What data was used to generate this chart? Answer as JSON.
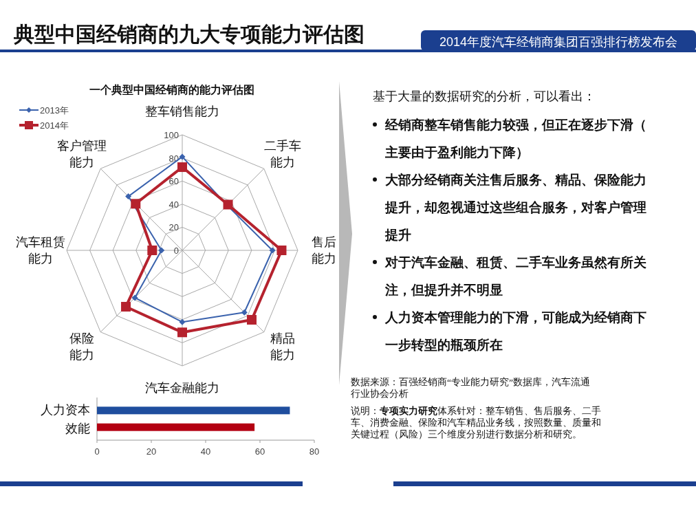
{
  "chart_data": [
    {
      "type": "other",
      "title": "典型中国经销商的九大专项能力评估图",
      "subtitle": "2014年度汽车经销商集团百强排行榜发布会",
      "annotations": [
        "基于大量的数据研究的分析，可以看出：",
        "经销商整车销售能力较强，但正在逐步下滑（主要由于盈利能力下降）",
        "大部分经销商关注售后服务、精品、保险能力提升，却忽视通过这些组合服务，对客户管理提升",
        "对于汽车金融、租赁、二手车业务虽然有所关注，但提升并不明显",
        "人力资本管理能力的下滑，可能成为经销商下一步转型的瓶颈所在",
        "数据来源：百强经销商“专业能力研究”数据库，汽车流通行业协会分析",
        "说明：**专项实力研究**体系针对：整车销售、售后服务、二手车、消费金融、保险和汽车精品业务线，按照数量、质量和关键过程（风险）三个维度分别进行数据分析和研究。"
      ]
    },
    {
      "type": "radar",
      "title": "一个典型中国经销商的能力评估图",
      "categories": [
        "整车销售能力",
        "二手车能力",
        "售后能力",
        "精品能力",
        "汽车金融能力",
        "保险能力",
        "汽车租赁能力",
        "客户管理能力"
      ],
      "ylim": [
        0,
        100
      ],
      "yticks": [
        0,
        20,
        40,
        60,
        80,
        100
      ],
      "grid": true,
      "legend": "top left",
      "series": [
        {
          "name": "2013年",
          "color": "#3a62ad",
          "marker": "diamond",
          "values": [
            81,
            55,
            78,
            76,
            62,
            58,
            18,
            66
          ]
        },
        {
          "name": "2014年",
          "color": "#b5222e",
          "marker": "square",
          "values": [
            72,
            56,
            86,
            85,
            71,
            69,
            26,
            57
          ]
        }
      ]
    },
    {
      "type": "bar",
      "orientation": "horizontal",
      "categories": [
        "人力资本效能"
      ],
      "xlim": [
        0,
        80
      ],
      "xticks": [
        0,
        20,
        40,
        60,
        80
      ],
      "series": [
        {
          "color": "#1f4e9e",
          "values": [
            71
          ]
        },
        {
          "color": "#b30012",
          "values": [
            58
          ]
        }
      ]
    }
  ]
}
